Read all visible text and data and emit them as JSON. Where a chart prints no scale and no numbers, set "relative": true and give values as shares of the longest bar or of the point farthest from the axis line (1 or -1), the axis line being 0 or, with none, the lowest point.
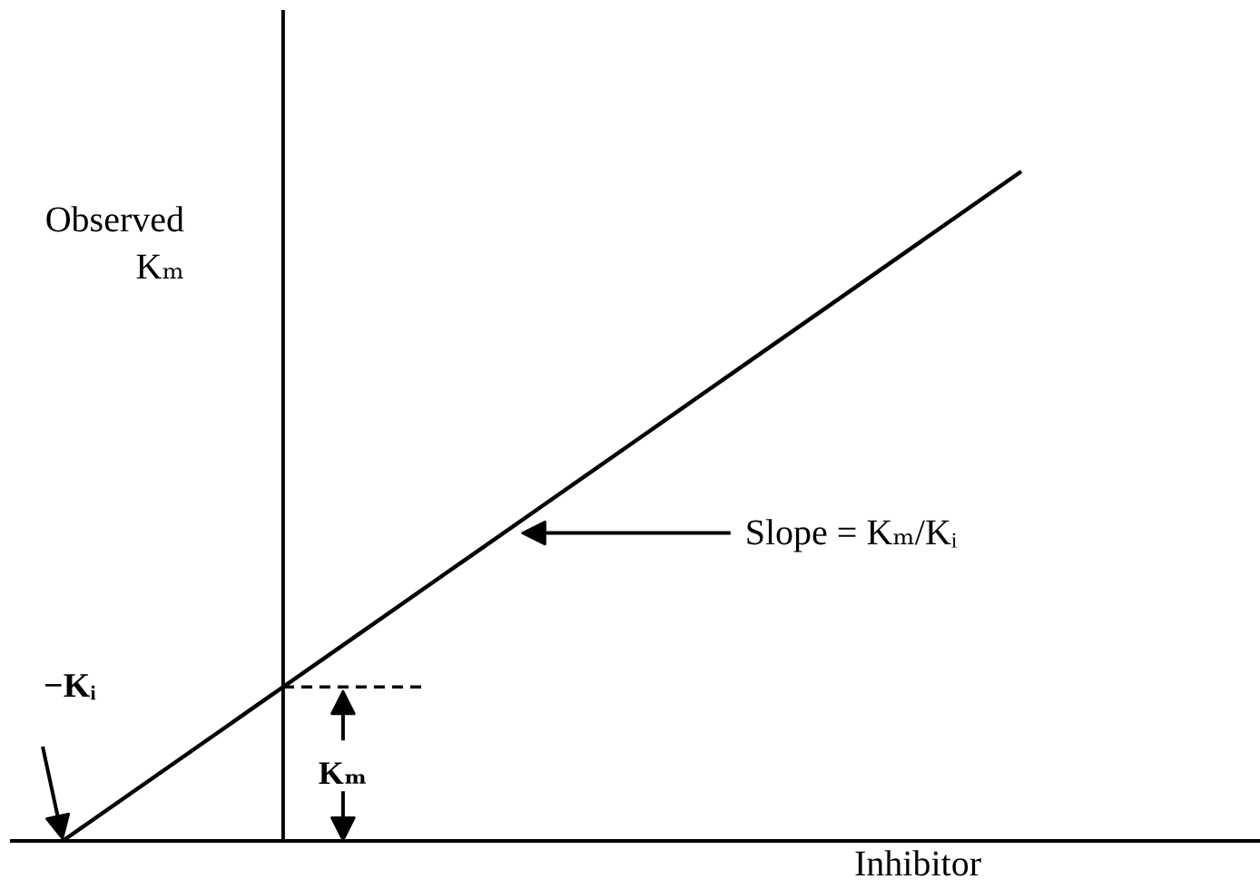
{
  "chart_data": {
    "type": "line",
    "relative": true,
    "ylabel": "Observed Kₘ",
    "xlabel": "Inhibitor",
    "categories": [
      null,
      null,
      null,
      null,
      null,
      null,
      null,
      null,
      null,
      null,
      null
    ],
    "series": [
      {
        "color": "#000000",
        "values": [
          0,
          0.1,
          0.2,
          0.3,
          0.4,
          0.5,
          0.6,
          0.7,
          0.8,
          0.9,
          1
        ]
      }
    ],
    "tick_labels": false,
    "ref_lines": [
      {
        "axis": "y",
        "value": 0.23,
        "line_style": "dashed"
      }
    ],
    "annotations": [
      "−Kᵢ",
      "Slope = Kₘ/Kᵢ",
      "Kₘ"
    ]
  }
}
